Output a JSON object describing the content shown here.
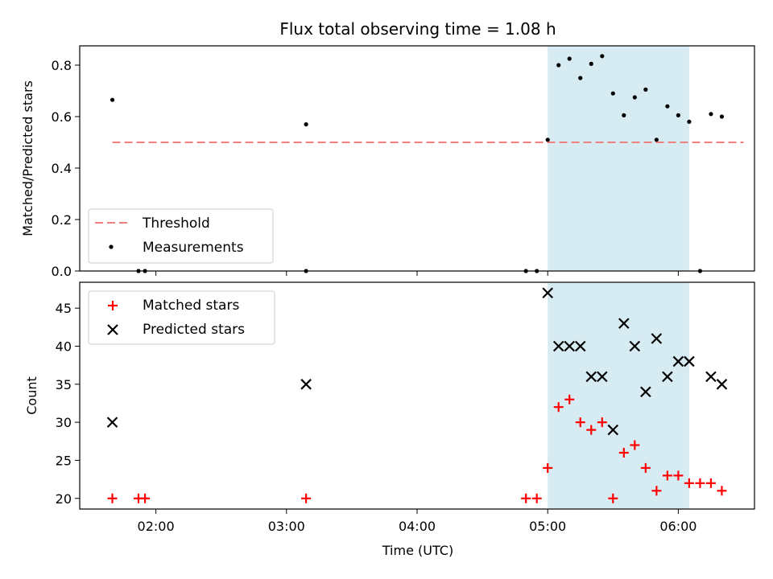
{
  "chart_data": [
    {
      "type": "scatter",
      "title": "Flux total observing time = 1.08 h",
      "xlabel": "",
      "ylabel": "Matched/Predicted stars",
      "ylim": [
        0,
        0.875
      ],
      "yticks": [
        "0.0",
        "0.2",
        "0.4",
        "0.6",
        "0.8"
      ],
      "grid": false,
      "legend_position": "lower-left",
      "highlight_span": {
        "x_start": "05:00",
        "x_end": "06:05",
        "color": "#add8e6"
      },
      "threshold": {
        "name": "Threshold",
        "value": 0.5,
        "x_start": "01:40",
        "x_end": "06:30",
        "color": "#f08080",
        "style": "dashed"
      },
      "series": [
        {
          "name": "Measurements",
          "marker": "dot",
          "color": "#000000",
          "points": [
            [
              "01:40",
              0.665
            ],
            [
              "01:52",
              0.0
            ],
            [
              "01:55",
              0.0
            ],
            [
              "03:09",
              0.57
            ],
            [
              "03:09",
              0.0
            ],
            [
              "04:50",
              0.0
            ],
            [
              "04:55",
              0.0
            ],
            [
              "05:00",
              0.51
            ],
            [
              "05:05",
              0.8
            ],
            [
              "05:10",
              0.825
            ],
            [
              "05:15",
              0.75
            ],
            [
              "05:20",
              0.805
            ],
            [
              "05:25",
              0.835
            ],
            [
              "05:30",
              0.69
            ],
            [
              "05:35",
              0.605
            ],
            [
              "05:40",
              0.675
            ],
            [
              "05:45",
              0.705
            ],
            [
              "05:50",
              0.51
            ],
            [
              "05:55",
              0.64
            ],
            [
              "06:00",
              0.605
            ],
            [
              "06:05",
              0.58
            ],
            [
              "06:10",
              0.0
            ],
            [
              "06:15",
              0.61
            ],
            [
              "06:20",
              0.6
            ]
          ]
        }
      ]
    },
    {
      "type": "scatter",
      "title": "",
      "xlabel": "Time (UTC)",
      "ylabel": "Count",
      "ylim": [
        18.6,
        48.4
      ],
      "yticks": [
        "20",
        "25",
        "30",
        "35",
        "40",
        "45"
      ],
      "xlim": [
        "01:25",
        "06:35"
      ],
      "xticks": [
        "02:00",
        "03:00",
        "04:00",
        "05:00",
        "06:00"
      ],
      "grid": false,
      "legend_position": "upper-left",
      "highlight_span": {
        "x_start": "05:00",
        "x_end": "06:05",
        "color": "#add8e6"
      },
      "series": [
        {
          "name": "Matched stars",
          "marker": "plus",
          "color": "#ff0000",
          "points": [
            [
              "01:40",
              20
            ],
            [
              "01:52",
              20
            ],
            [
              "01:55",
              20
            ],
            [
              "03:09",
              20
            ],
            [
              "04:50",
              20
            ],
            [
              "04:55",
              20
            ],
            [
              "05:00",
              24
            ],
            [
              "05:05",
              32
            ],
            [
              "05:10",
              33
            ],
            [
              "05:15",
              30
            ],
            [
              "05:20",
              29
            ],
            [
              "05:25",
              30
            ],
            [
              "05:30",
              20
            ],
            [
              "05:35",
              26
            ],
            [
              "05:40",
              27
            ],
            [
              "05:45",
              24
            ],
            [
              "05:50",
              21
            ],
            [
              "05:55",
              23
            ],
            [
              "06:00",
              23
            ],
            [
              "06:05",
              22
            ],
            [
              "06:10",
              22
            ],
            [
              "06:15",
              22
            ],
            [
              "06:20",
              21
            ]
          ]
        },
        {
          "name": "Predicted stars",
          "marker": "x",
          "color": "#000000",
          "points": [
            [
              "01:40",
              30
            ],
            [
              "03:09",
              35
            ],
            [
              "05:00",
              47
            ],
            [
              "05:05",
              40
            ],
            [
              "05:10",
              40
            ],
            [
              "05:15",
              40
            ],
            [
              "05:20",
              36
            ],
            [
              "05:25",
              36
            ],
            [
              "05:30",
              29
            ],
            [
              "05:35",
              43
            ],
            [
              "05:40",
              40
            ],
            [
              "05:45",
              34
            ],
            [
              "05:50",
              41
            ],
            [
              "05:55",
              36
            ],
            [
              "06:00",
              38
            ],
            [
              "06:05",
              38
            ],
            [
              "06:15",
              36
            ],
            [
              "06:20",
              35
            ]
          ]
        }
      ]
    }
  ]
}
